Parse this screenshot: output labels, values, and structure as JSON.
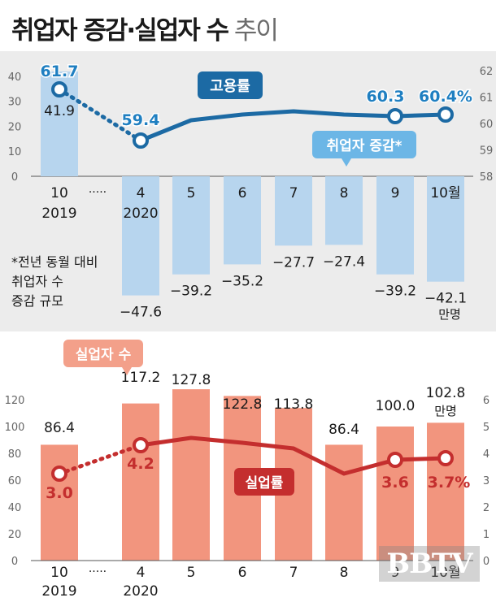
{
  "title": {
    "main": "취업자 증감·실업자 수",
    "sub": "추이"
  },
  "months": [
    "10",
    "4",
    "5",
    "6",
    "7",
    "8",
    "9",
    "10월"
  ],
  "years": [
    "2019",
    "2020"
  ],
  "gap_marker": "·····",
  "colors": {
    "bar_blue": "#b7d5ee",
    "line_blue": "#1c6aa4",
    "label_blue": "#1f7fc1",
    "bar_orange": "#f2957e",
    "line_red": "#c42e2e",
    "label_red": "#c42e2e",
    "box_orange": "#f3a08a"
  },
  "chart_data": [
    {
      "type": "bar",
      "series": [
        {
          "name": "취업자 증감",
          "values": [
            41.9,
            -47.6,
            -39.2,
            -35.2,
            -27.7,
            -27.4,
            -39.2,
            -42.1
          ]
        }
      ],
      "labels": [
        "41.9",
        "-47.6",
        "-39.2",
        "-35.2",
        "-27.7",
        "-27.4",
        "-39.2",
        "-42.1"
      ],
      "unit": "만명",
      "ylim": [
        -47.6,
        40
      ],
      "ylim_left_ticks": [
        0,
        10,
        20,
        30,
        40
      ],
      "y_right_ticks": [
        58,
        59,
        60,
        61,
        62
      ],
      "line": {
        "name": "고용률",
        "values": [
          61.7,
          59.4,
          null,
          null,
          null,
          null,
          60.3,
          60.4
        ],
        "labels": [
          "61.7",
          "59.4",
          "",
          "",
          "",
          "",
          "60.3",
          "60.4%"
        ]
      },
      "legend_label": "취업자 증감*",
      "footnote": [
        "*전년 동월 대비",
        "취업자 수",
        "증감 규모"
      ]
    },
    {
      "type": "bar",
      "series": [
        {
          "name": "실업자 수",
          "values": [
            86.4,
            117.2,
            127.8,
            122.8,
            113.8,
            86.4,
            100.0,
            102.8
          ]
        }
      ],
      "labels": [
        "86.4",
        "117.2",
        "127.8",
        "122.8",
        "113.8",
        "86.4",
        "100.0",
        "102.8"
      ],
      "unit": "만명",
      "ylim": [
        0,
        120
      ],
      "y_left_ticks": [
        0,
        20,
        40,
        60,
        80,
        100,
        120
      ],
      "y_right_ticks": [
        0,
        1,
        2,
        3,
        4,
        5,
        6
      ],
      "line": {
        "name": "실업률",
        "values": [
          3.0,
          4.2,
          4.5,
          4.3,
          4.0,
          3.1,
          3.6,
          3.7
        ],
        "labels": [
          "3.0",
          "4.2",
          "",
          "",
          "",
          "",
          "3.6",
          "3.7%"
        ]
      }
    }
  ],
  "watermark": "BBTV"
}
